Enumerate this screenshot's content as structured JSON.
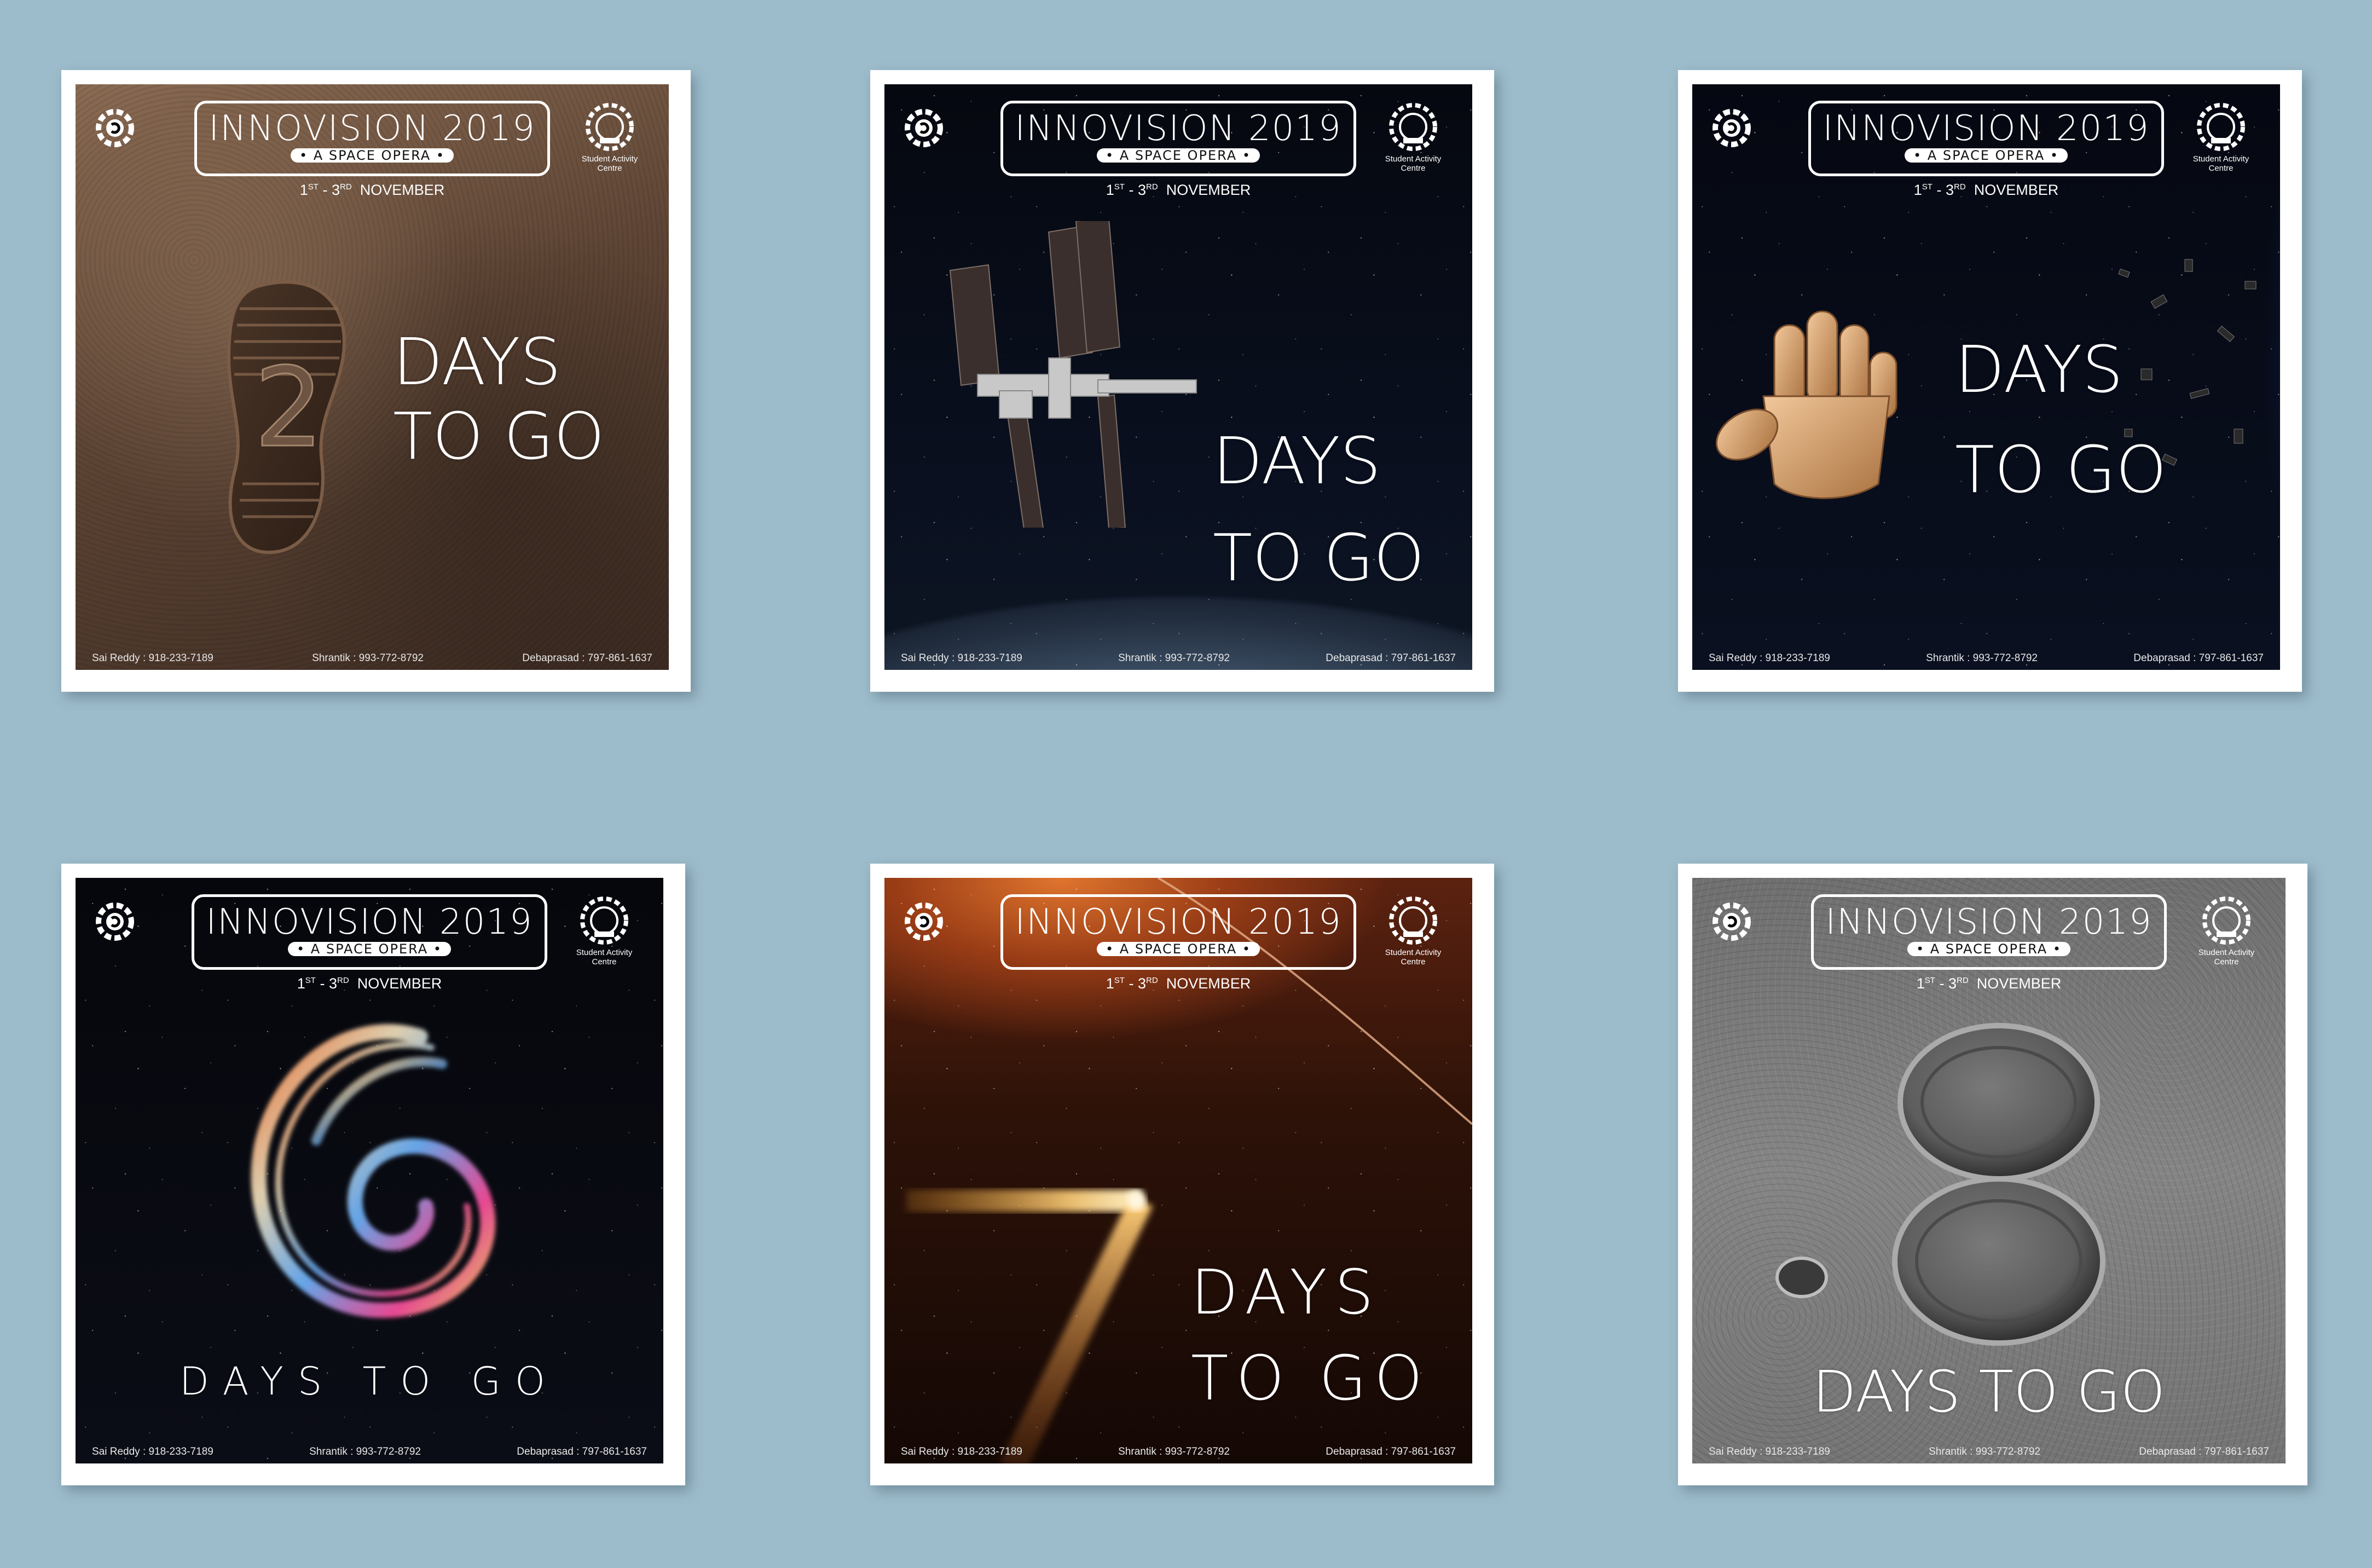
{
  "posters": [
    {
      "title": "INNOVISION 2019",
      "subtitle": "• A SPACE OPERA •",
      "date_start": "1",
      "date_start_suffix": "ST",
      "date_sep": " - ",
      "date_end": "3",
      "date_end_suffix": "RD",
      "date_month": "NOVEMBER",
      "sac_label_1": "Student Activity",
      "sac_label_2": "Centre",
      "countdown_number": "2",
      "line1": "DAYS",
      "line2": "TO GO",
      "contacts": [
        "Sai Reddy : 918-233-7189",
        "Shrantik : 993-772-8792",
        "Debaprasad : 797-861-1637"
      ]
    },
    {
      "title": "INNOVISION 2019",
      "subtitle": "• A SPACE OPERA •",
      "date_start": "1",
      "date_start_suffix": "ST",
      "date_sep": " - ",
      "date_end": "3",
      "date_end_suffix": "RD",
      "date_month": "NOVEMBER",
      "sac_label_1": "Student Activity",
      "sac_label_2": "Centre",
      "line1": "DAYS",
      "line2": "TO GO",
      "contacts": [
        "Sai Reddy : 918-233-7189",
        "Shrantik : 993-772-8792",
        "Debaprasad : 797-861-1637"
      ]
    },
    {
      "title": "INNOVISION 2019",
      "subtitle": "• A SPACE OPERA •",
      "date_start": "1",
      "date_start_suffix": "ST",
      "date_sep": " - ",
      "date_end": "3",
      "date_end_suffix": "RD",
      "date_month": "NOVEMBER",
      "sac_label_1": "Student Activity",
      "sac_label_2": "Centre",
      "line1": "DAYS",
      "line2": "TO GO",
      "contacts": [
        "Sai Reddy : 918-233-7189",
        "Shrantik : 993-772-8792",
        "Debaprasad : 797-861-1637"
      ]
    },
    {
      "title": "INNOVISION 2019",
      "subtitle": "• A SPACE OPERA •",
      "date_start": "1",
      "date_start_suffix": "ST",
      "date_sep": " - ",
      "date_end": "3",
      "date_end_suffix": "RD",
      "date_month": "NOVEMBER",
      "sac_label_1": "Student Activity",
      "sac_label_2": "Centre",
      "line1": "DAYS TO GO",
      "contacts": [
        "Sai Reddy : 918-233-7189",
        "Shrantik : 993-772-8792",
        "Debaprasad : 797-861-1637"
      ]
    },
    {
      "title": "INNOVISION 2019",
      "subtitle": "• A SPACE OPERA •",
      "date_start": "1",
      "date_start_suffix": "ST",
      "date_sep": " - ",
      "date_end": "3",
      "date_end_suffix": "RD",
      "date_month": "NOVEMBER",
      "sac_label_1": "Student Activity",
      "sac_label_2": "Centre",
      "line1": "DAYS",
      "line2": "TO GO",
      "contacts": [
        "Sai Reddy : 918-233-7189",
        "Shrantik : 993-772-8792",
        "Debaprasad : 797-861-1637"
      ]
    },
    {
      "title": "INNOVISION 2019",
      "subtitle": "• A SPACE OPERA •",
      "date_start": "1",
      "date_start_suffix": "ST",
      "date_sep": " - ",
      "date_end": "3",
      "date_end_suffix": "RD",
      "date_month": "NOVEMBER",
      "sac_label_1": "Student Activity",
      "sac_label_2": "Centre",
      "line1": "DAYS TO GO",
      "contacts": [
        "Sai Reddy : 918-233-7189",
        "Shrantik : 993-772-8792",
        "Debaprasad : 797-861-1637"
      ]
    }
  ]
}
